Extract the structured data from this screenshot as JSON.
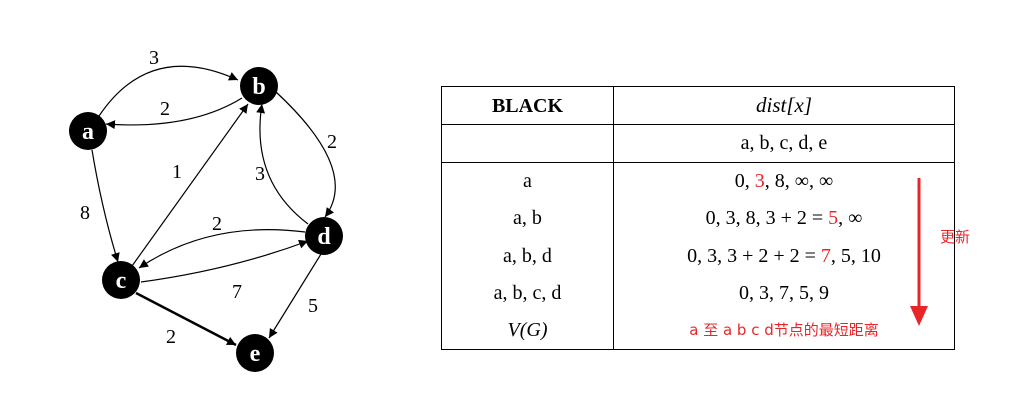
{
  "graph": {
    "nodes": [
      {
        "id": "a",
        "label": "a"
      },
      {
        "id": "b",
        "label": "b"
      },
      {
        "id": "c",
        "label": "c"
      },
      {
        "id": "d",
        "label": "d"
      },
      {
        "id": "e",
        "label": "e"
      }
    ],
    "edges": [
      {
        "from": "a",
        "to": "b",
        "weight": "3"
      },
      {
        "from": "b",
        "to": "a",
        "weight": "2"
      },
      {
        "from": "a",
        "to": "c",
        "weight": "8"
      },
      {
        "from": "c",
        "to": "b",
        "weight": "1"
      },
      {
        "from": "b",
        "to": "d",
        "weight": "2"
      },
      {
        "from": "d",
        "to": "b",
        "weight": "3"
      },
      {
        "from": "d",
        "to": "c",
        "weight": "2"
      },
      {
        "from": "c",
        "to": "d",
        "weight": "7"
      },
      {
        "from": "d",
        "to": "e",
        "weight": "5"
      },
      {
        "from": "c",
        "to": "e",
        "weight": "2"
      }
    ]
  },
  "table": {
    "header_black": "BLACK",
    "header_dist": "dist[x]",
    "order_row": "a, b, c, d, e",
    "rows": [
      {
        "black": "a",
        "dist_parts": [
          "0, ",
          "3",
          ", 8, ∞, ∞"
        ]
      },
      {
        "black": "a, b",
        "dist_parts": [
          "0, 3, 8, 3 + 2 = ",
          "5",
          ", ∞"
        ]
      },
      {
        "black": "a, b, d",
        "dist_parts": [
          "0, 3, 3 + 2 + 2 = ",
          "7",
          ", 5, 10"
        ]
      },
      {
        "black": "a, b, c, d",
        "dist_parts": [
          "0, 3, 7, 5, 9"
        ]
      }
    ],
    "final_black": "V(G)",
    "final_note": "a 至 a b c d节点的最短距离"
  },
  "annotation": {
    "update_label": "更新",
    "color": "#e8262a"
  }
}
